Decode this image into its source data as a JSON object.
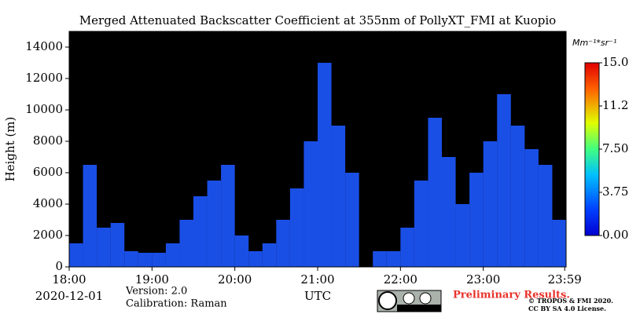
{
  "chart_data": {
    "type": "heatmap-columns",
    "title": "Merged Attenuated Backscatter Coefficient at 355nm of PollyXT_FMI at Kuopio",
    "ylabel": "Height (m)",
    "xlabel": "UTC",
    "date": "2020-12-01",
    "version": "Version: 2.0",
    "calibration": "Calibration: Raman",
    "notice": "Preliminary Results.",
    "copyright": "© TROPOS & FMI 2020.",
    "license": "CC BY SA 4.0 License.",
    "colorbar_label": "Mm⁻¹*sr⁻¹",
    "color": "#1a4fe6",
    "x": [
      18.0,
      18.1667,
      18.3333,
      18.5,
      18.6667,
      18.8333,
      19.0,
      19.1667,
      19.3333,
      19.5,
      19.6667,
      19.8333,
      20.0,
      20.1667,
      20.3333,
      20.5,
      20.6667,
      20.8333,
      21.0,
      21.1667,
      21.3333,
      21.5,
      21.6667,
      21.8333,
      22.0,
      22.1667,
      22.3333,
      22.5,
      22.6667,
      22.8333,
      23.0,
      23.1667,
      23.3333,
      23.5,
      23.6667,
      23.8333
    ],
    "values": [
      1500,
      6500,
      2500,
      2800,
      1000,
      900,
      900,
      1500,
      3000,
      4500,
      5500,
      6500,
      2000,
      1000,
      1500,
      3000,
      5000,
      8000,
      13000,
      9000,
      6000,
      null,
      1000,
      1000,
      2500,
      5500,
      9500,
      7000,
      4000,
      6000,
      8000,
      11000,
      9000,
      7500,
      6500,
      3000
    ],
    "xlim": [
      18,
      24
    ],
    "xticks": [
      {
        "value": 18,
        "label": "18:00"
      },
      {
        "value": 19,
        "label": "19:00"
      },
      {
        "value": 20,
        "label": "20:00"
      },
      {
        "value": 21,
        "label": "21:00"
      },
      {
        "value": 22,
        "label": "22:00"
      },
      {
        "value": 23,
        "label": "23:00"
      },
      {
        "value": 23.983,
        "label": "23:59"
      }
    ],
    "ylim": [
      0,
      15000
    ],
    "yticks": [
      0,
      2000,
      4000,
      6000,
      8000,
      10000,
      12000,
      14000
    ],
    "clim": [
      0,
      15
    ],
    "cticks": [
      {
        "value": 0,
        "label": "0.00"
      },
      {
        "value": 3.75,
        "label": "3.75"
      },
      {
        "value": 7.5,
        "label": "7.50"
      },
      {
        "value": 11.25,
        "label": "11.2"
      },
      {
        "value": 15,
        "label": "15.0"
      }
    ]
  }
}
